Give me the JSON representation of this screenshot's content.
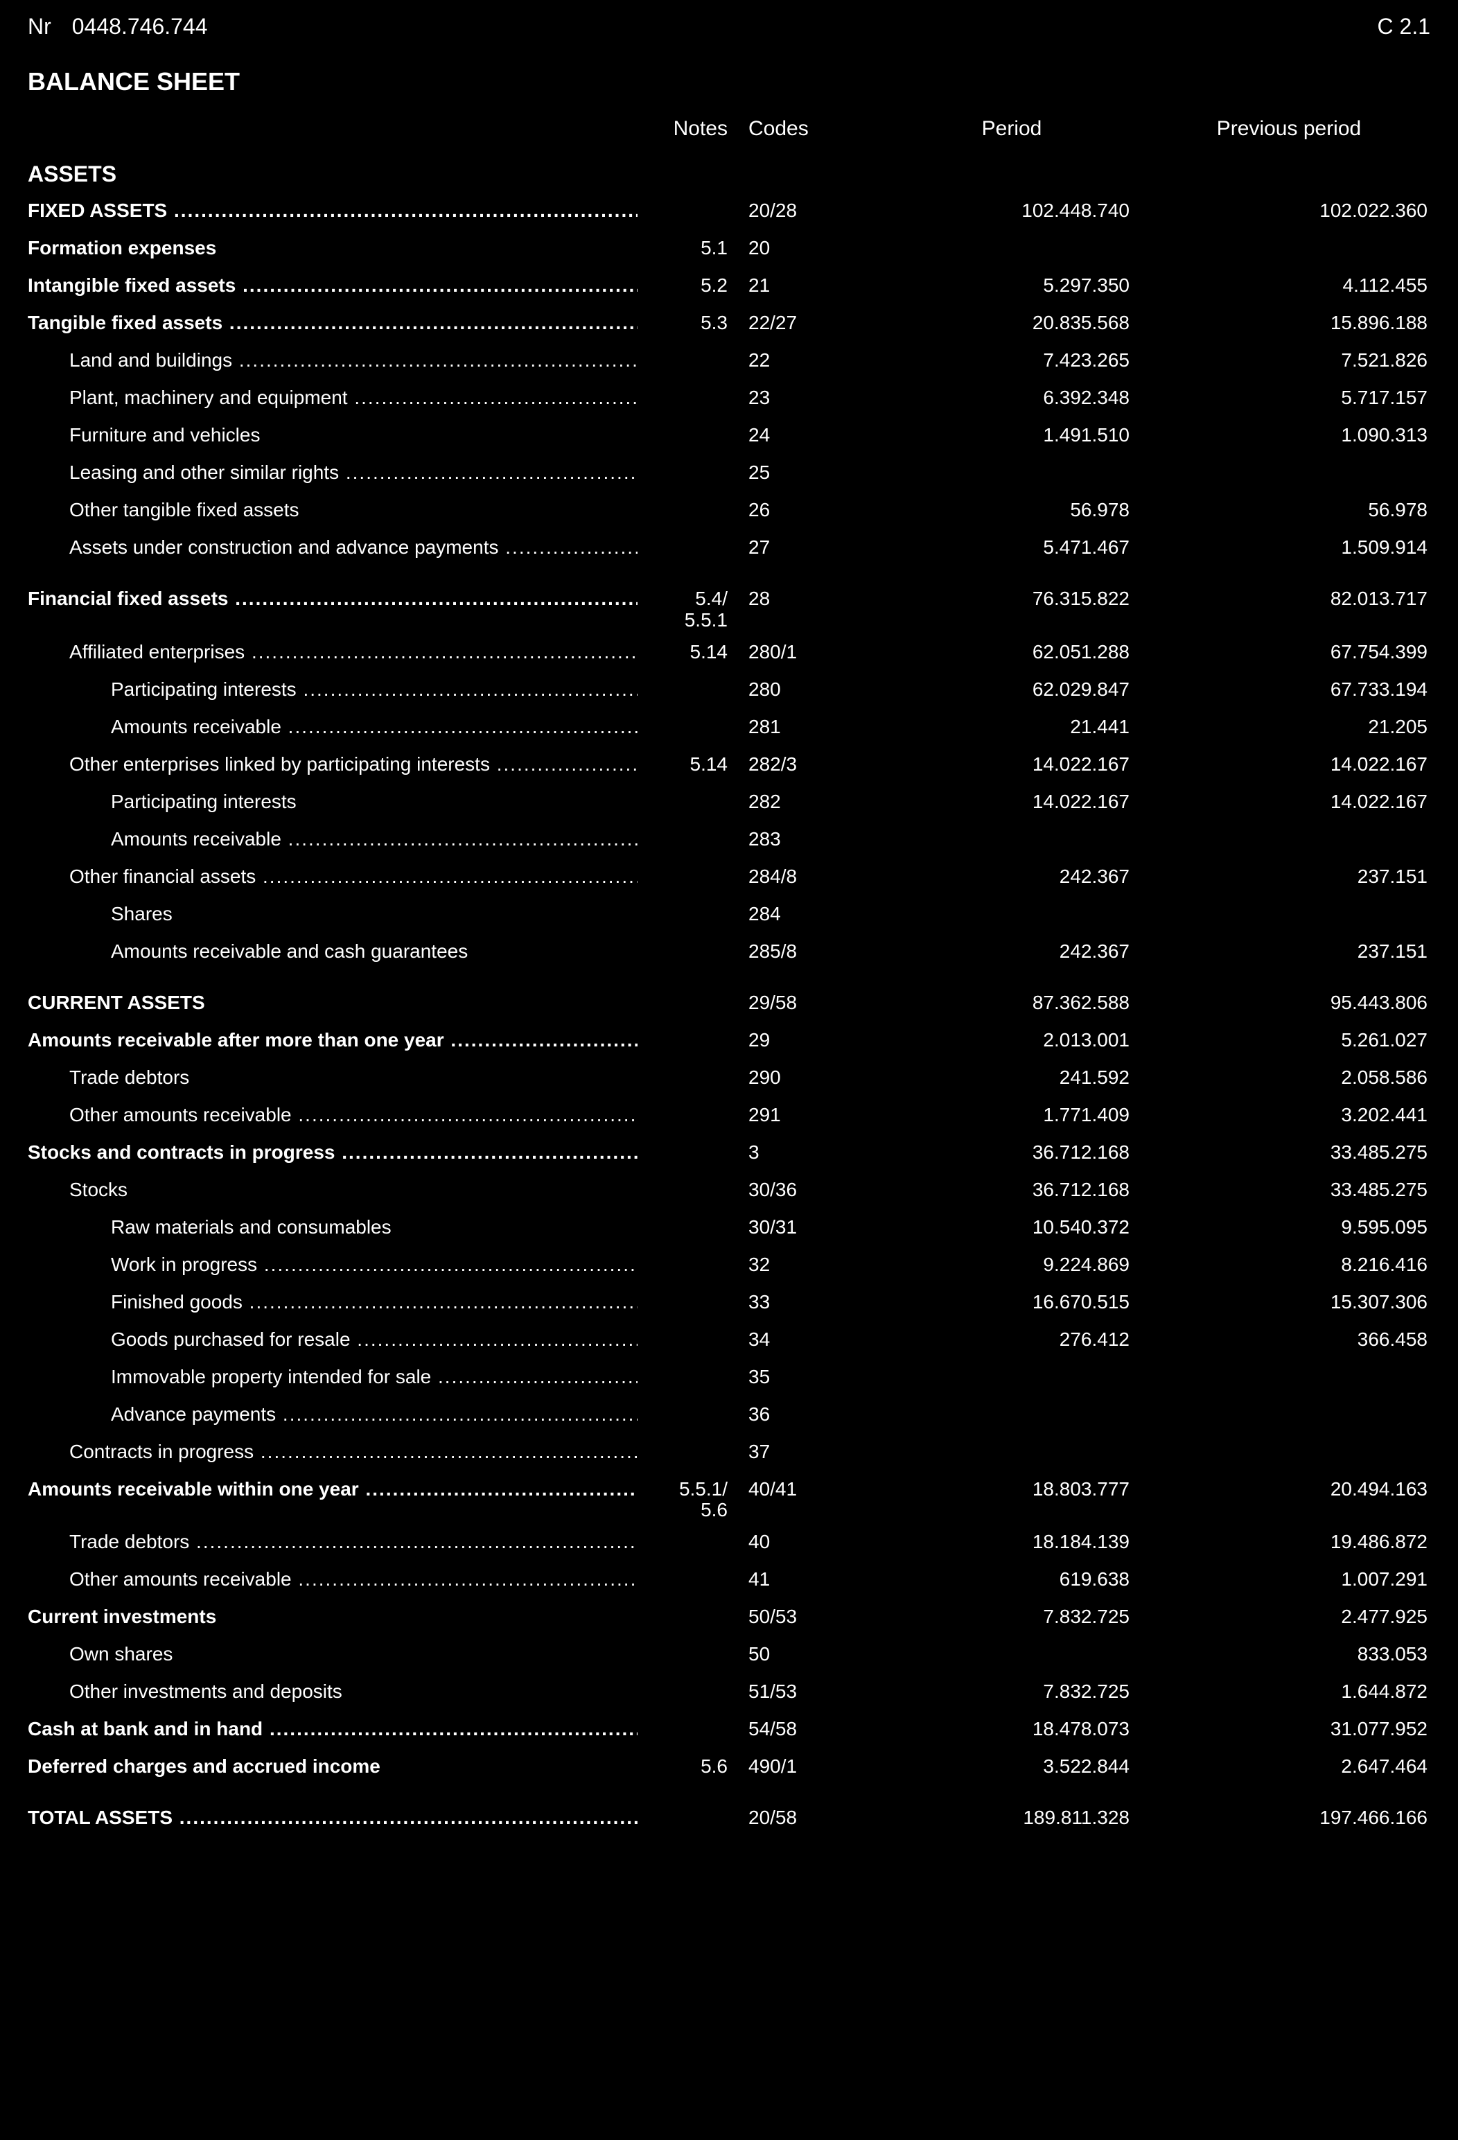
{
  "header": {
    "nr_label": "Nr",
    "nr_value": "0448.746.744",
    "page_ref": "C  2.1"
  },
  "title": "BALANCE SHEET",
  "columns": {
    "notes": "Notes",
    "codes": "Codes",
    "period": "Period",
    "prev": "Previous period"
  },
  "sections": {
    "assets": "ASSETS"
  },
  "rows": [
    {
      "label": "FIXED ASSETS",
      "dots": true,
      "bold": true,
      "caps": true,
      "notes": "",
      "codes": "20/28",
      "period": "102.448.740",
      "prev": "102.022.360"
    },
    {
      "label": "Formation expenses",
      "bold": true,
      "notes": "5.1",
      "codes": "20",
      "period": "",
      "prev": ""
    },
    {
      "label": "Intangible fixed assets",
      "dots": true,
      "bold": true,
      "notes": "5.2",
      "codes": "21",
      "period": "5.297.350",
      "prev": "4.112.455"
    },
    {
      "label": "Tangible fixed assets",
      "dots": true,
      "bold": true,
      "notes": "5.3",
      "codes": "22/27",
      "period": "20.835.568",
      "prev": "15.896.188"
    },
    {
      "label": "Land and buildings",
      "dots": true,
      "indent": 1,
      "notes": "",
      "codes": "22",
      "period": "7.423.265",
      "prev": "7.521.826"
    },
    {
      "label": "Plant, machinery and equipment",
      "dots": true,
      "indent": 1,
      "notes": "",
      "codes": "23",
      "period": "6.392.348",
      "prev": "5.717.157"
    },
    {
      "label": "Furniture and vehicles",
      "indent": 1,
      "notes": "",
      "codes": "24",
      "period": "1.491.510",
      "prev": "1.090.313"
    },
    {
      "label": "Leasing and other similar rights",
      "dots": true,
      "indent": 1,
      "notes": "",
      "codes": "25",
      "period": "",
      "prev": ""
    },
    {
      "label": "Other tangible fixed assets",
      "indent": 1,
      "notes": "",
      "codes": "26",
      "period": "56.978",
      "prev": "56.978"
    },
    {
      "label": "Assets under construction and advance payments",
      "dots": true,
      "indent": 1,
      "notes": "",
      "codes": "27",
      "period": "5.471.467",
      "prev": "1.509.914"
    },
    {
      "spacer": true
    },
    {
      "label": "Financial fixed assets",
      "dots": true,
      "bold": true,
      "notes_stack": [
        "5.4/",
        "5.5.1"
      ],
      "codes": "28",
      "period": "76.315.822",
      "prev": "82.013.717"
    },
    {
      "label": "Affiliated enterprises",
      "dots": true,
      "indent": 1,
      "notes": "5.14",
      "codes": "280/1",
      "period": "62.051.288",
      "prev": "67.754.399"
    },
    {
      "label": "Participating interests",
      "dots": true,
      "indent": 2,
      "notes": "",
      "codes": "280",
      "period": "62.029.847",
      "prev": "67.733.194"
    },
    {
      "label": "Amounts receivable",
      "dots": true,
      "indent": 2,
      "notes": "",
      "codes": "281",
      "period": "21.441",
      "prev": "21.205"
    },
    {
      "label": "Other enterprises linked by participating interests",
      "dots": true,
      "indent": 1,
      "notes": "5.14",
      "codes": "282/3",
      "period": "14.022.167",
      "prev": "14.022.167"
    },
    {
      "label": "Participating interests",
      "indent": 2,
      "notes": "",
      "codes": "282",
      "period": "14.022.167",
      "prev": "14.022.167"
    },
    {
      "label": "Amounts receivable",
      "dots": true,
      "indent": 2,
      "notes": "",
      "codes": "283",
      "period": "",
      "prev": ""
    },
    {
      "label": "Other financial assets",
      "dots": true,
      "indent": 1,
      "notes": "",
      "codes": "284/8",
      "period": "242.367",
      "prev": "237.151"
    },
    {
      "label": "Shares",
      "indent": 2,
      "notes": "",
      "codes": "284",
      "period": "",
      "prev": ""
    },
    {
      "label": "Amounts receivable and cash guarantees",
      "indent": 2,
      "notes": "",
      "codes": "285/8",
      "period": "242.367",
      "prev": "237.151"
    },
    {
      "spacer": true
    },
    {
      "label": "CURRENT ASSETS",
      "bold": true,
      "caps": true,
      "notes": "",
      "codes": "29/58",
      "period": "87.362.588",
      "prev": "95.443.806"
    },
    {
      "label": "Amounts receivable after more than one year",
      "dots": true,
      "bold": true,
      "notes": "",
      "codes": "29",
      "period": "2.013.001",
      "prev": "5.261.027"
    },
    {
      "label": "Trade debtors",
      "indent": 1,
      "notes": "",
      "codes": "290",
      "period": "241.592",
      "prev": "2.058.586"
    },
    {
      "label": "Other amounts receivable",
      "dots": true,
      "indent": 1,
      "notes": "",
      "codes": "291",
      "period": "1.771.409",
      "prev": "3.202.441"
    },
    {
      "label": "Stocks and contracts in progress",
      "dots": true,
      "bold": true,
      "notes": "",
      "codes": "3",
      "period": "36.712.168",
      "prev": "33.485.275"
    },
    {
      "label": "Stocks",
      "indent": 1,
      "notes": "",
      "codes": "30/36",
      "period": "36.712.168",
      "prev": "33.485.275"
    },
    {
      "label": "Raw materials and consumables",
      "indent": 2,
      "notes": "",
      "codes": "30/31",
      "period": "10.540.372",
      "prev": "9.595.095"
    },
    {
      "label": "Work in progress",
      "dots": true,
      "indent": 2,
      "notes": "",
      "codes": "32",
      "period": "9.224.869",
      "prev": "8.216.416"
    },
    {
      "label": "Finished goods",
      "dots": true,
      "indent": 2,
      "notes": "",
      "codes": "33",
      "period": "16.670.515",
      "prev": "15.307.306"
    },
    {
      "label": "Goods purchased for resale",
      "dots": true,
      "indent": 2,
      "notes": "",
      "codes": "34",
      "period": "276.412",
      "prev": "366.458"
    },
    {
      "label": "Immovable property intended for sale",
      "dots": true,
      "indent": 2,
      "notes": "",
      "codes": "35",
      "period": "",
      "prev": ""
    },
    {
      "label": "Advance payments",
      "dots": true,
      "indent": 2,
      "notes": "",
      "codes": "36",
      "period": "",
      "prev": ""
    },
    {
      "label": "Contracts in progress",
      "dots": true,
      "indent": 1,
      "notes": "",
      "codes": "37",
      "period": "",
      "prev": ""
    },
    {
      "label": "Amounts receivable within one year",
      "dots": true,
      "bold": true,
      "notes_stack": [
        "5.5.1/",
        "5.6"
      ],
      "codes": "40/41",
      "period": "18.803.777",
      "prev": "20.494.163"
    },
    {
      "label": "Trade debtors",
      "dots": true,
      "indent": 1,
      "notes": "",
      "codes": "40",
      "period": "18.184.139",
      "prev": "19.486.872"
    },
    {
      "label": "Other amounts receivable",
      "dots": true,
      "indent": 1,
      "notes": "",
      "codes": "41",
      "period": "619.638",
      "prev": "1.007.291"
    },
    {
      "label": "Current investments",
      "bold": true,
      "notes": "",
      "codes": "50/53",
      "period": "7.832.725",
      "prev": "2.477.925"
    },
    {
      "label": "Own shares",
      "indent": 1,
      "notes": "",
      "codes": "50",
      "period": "",
      "prev": "833.053"
    },
    {
      "label": "Other investments and deposits",
      "indent": 1,
      "notes": "",
      "codes": "51/53",
      "period": "7.832.725",
      "prev": "1.644.872"
    },
    {
      "label": "Cash at bank and in hand",
      "dots": true,
      "bold": true,
      "notes": "",
      "codes": "54/58",
      "period": "18.478.073",
      "prev": "31.077.952"
    },
    {
      "label": "Deferred charges and accrued income",
      "bold": true,
      "notes": "5.6",
      "codes": "490/1",
      "period": "3.522.844",
      "prev": "2.647.464"
    },
    {
      "spacer": true
    },
    {
      "label": "TOTAL ASSETS",
      "dots": true,
      "bold": true,
      "caps": true,
      "notes": "",
      "codes": "20/58",
      "period": "189.811.328",
      "prev": "197.466.166"
    }
  ]
}
